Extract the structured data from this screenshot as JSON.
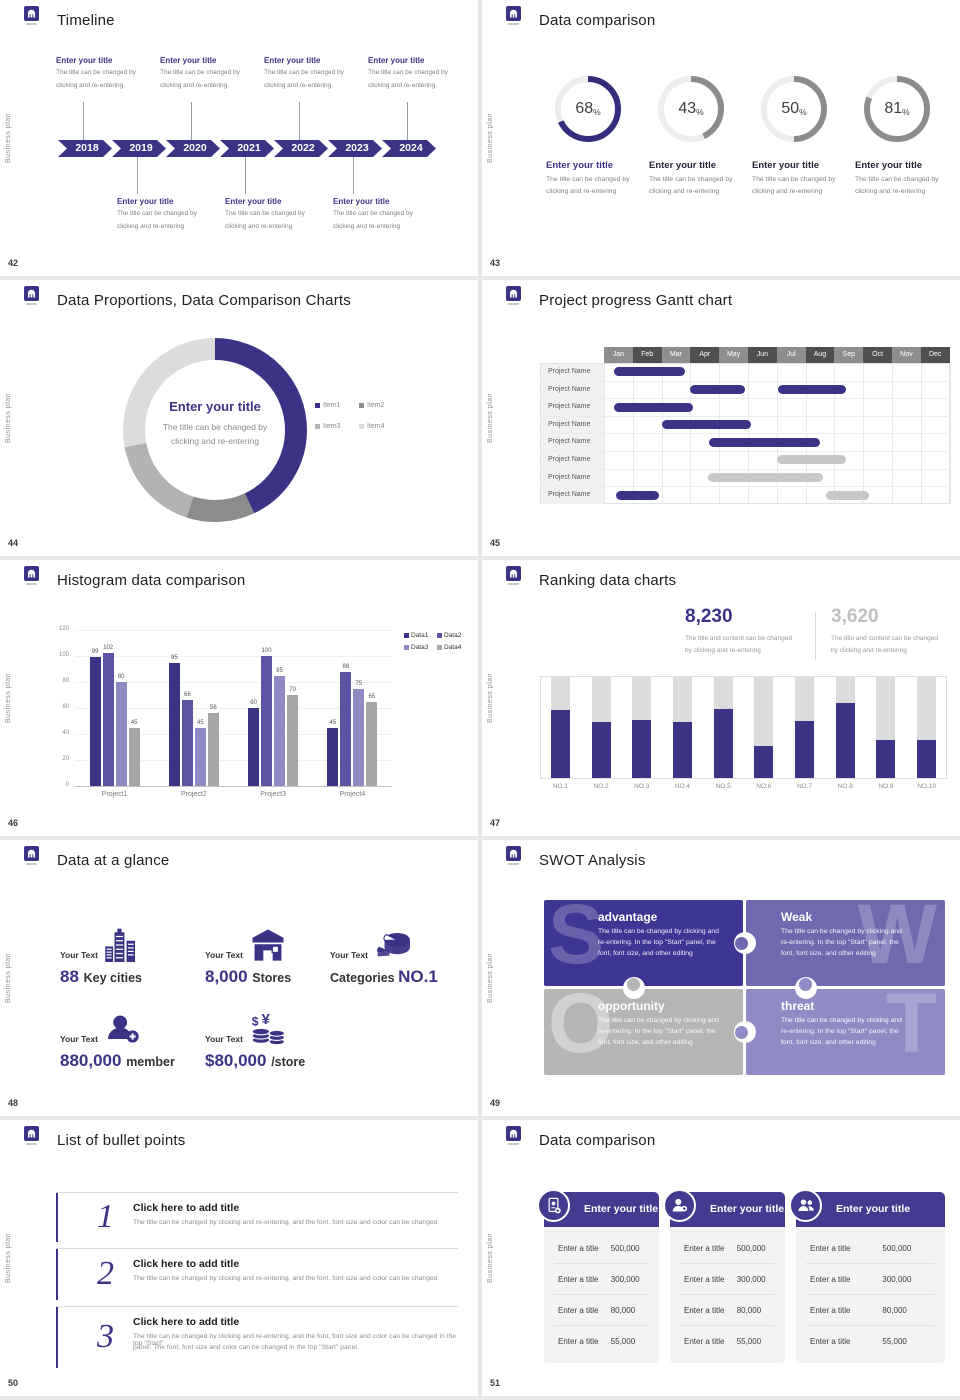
{
  "colors": {
    "accent": "#3b3486",
    "accent_deep": "#332d7b",
    "accent_mid": "#5b54a5",
    "accent_light": "#8f8ac4",
    "gray": "#8c8c8c",
    "gray_bar": "#c7c7c7",
    "track": "#dcdcdc",
    "card_header": "#423b8f"
  },
  "common": {
    "side_label": "Business plan"
  },
  "slides": [
    {
      "id": "timeline",
      "page_number": "42",
      "title": "Timeline",
      "years": [
        "2018",
        "2019",
        "2020",
        "2021",
        "2022",
        "2023",
        "2024"
      ],
      "item_title": "Enter your title",
      "item_body_lines": [
        "The title can be changed by",
        "clicking and re-entering"
      ],
      "top_year_indexes": [
        0,
        2,
        4,
        6
      ],
      "bottom_year_indexes": [
        1,
        3,
        5
      ]
    },
    {
      "id": "donut-progress",
      "page_number": "43",
      "title": "Data comparison",
      "item_title": "Enter your title",
      "item_body_lines": [
        "The title can be changed by",
        "clicking and re-entering"
      ]
    },
    {
      "id": "proportions",
      "page_number": "44",
      "title": "Data Proportions, Data Comparison Charts",
      "center_title": "Enter your title",
      "center_body_lines": [
        "The title can be changed by",
        "clicking and re-entering"
      ]
    },
    {
      "id": "gantt",
      "page_number": "45",
      "title": "Project progress Gantt chart",
      "row_label": "Project Name"
    },
    {
      "id": "histogram",
      "page_number": "46",
      "title": "Histogram data comparison"
    },
    {
      "id": "ranking",
      "page_number": "47",
      "title": "Ranking data charts",
      "stats": [
        {
          "value": "8,230",
          "accent": true,
          "body_lines": [
            "The title and content can be changed",
            "by clicking and re-entering"
          ]
        },
        {
          "value": "3,620",
          "accent": false,
          "body_lines": [
            "The title and content can be changed",
            "by clicking and re-entering"
          ]
        }
      ]
    },
    {
      "id": "glance",
      "page_number": "48",
      "title": "Data at a glance",
      "items": [
        {
          "label": "Your Text",
          "icon": "city-buildings-icon",
          "value": "88",
          "unit": "Key cities"
        },
        {
          "label": "Your Text",
          "icon": "store-icon",
          "value": "8,000",
          "unit": "Stores"
        },
        {
          "label": "Your Text",
          "icon": "pie-categories-icon",
          "prefix": "Categories",
          "value": "NO.1",
          "unit": ""
        },
        {
          "label": "Your Text",
          "icon": "member-add-icon",
          "value": "880,000",
          "unit": "member"
        },
        {
          "label": "Your Text",
          "icon": "coins-currency-icon",
          "value": "$80,000",
          "unit": "/store"
        }
      ]
    },
    {
      "id": "swot",
      "page_number": "49",
      "title": "SWOT Analysis",
      "pieces": [
        {
          "letter": "S",
          "title": "advantage",
          "color": "#3d3693",
          "body_lines": [
            "The title can be changed by clicking and",
            "re-entering. In the top \"Start\" panel, the",
            "font, font size, and other editing"
          ]
        },
        {
          "letter": "W",
          "title": "Weak",
          "color": "#6f69b0",
          "body_lines": [
            "The title can be changed by clicking and",
            "re-entering. In the top \"Start\" panel, the",
            "font, font size, and other editing"
          ]
        },
        {
          "letter": "O",
          "title": "opportunity",
          "color": "#b5b5b5",
          "body_lines": [
            "The title can be changed by clicking and",
            "re-entering. In the top \"Start\" panel, the",
            "font, font size, and other editing"
          ]
        },
        {
          "letter": "T",
          "title": "threat",
          "color": "#908bc5",
          "body_lines": [
            "The title can be changed by clicking and",
            "re-entering. In the top \"Start\" panel, the",
            "font, font size, and other editing"
          ]
        }
      ]
    },
    {
      "id": "bullets",
      "page_number": "50",
      "title": "List of bullet points",
      "items": [
        {
          "number": "1",
          "title": "Click here to add title",
          "body_lines": [
            "The title can be changed by clicking and re-entering, and the font, font size and color can be changed"
          ]
        },
        {
          "number": "2",
          "title": "Click here to add title",
          "body_lines": [
            "The title can be changed by clicking and re-entering, and the font, font size and color can be changed"
          ]
        },
        {
          "number": "3",
          "title": "Click here to add title",
          "body_lines": [
            "The title can be changed by clicking and re-entering, and the font, font size and color can be changed in the top \"Start\"",
            "panel. The font, font size and color can be changed in the top \"Start\" panel."
          ]
        }
      ]
    },
    {
      "id": "cards",
      "page_number": "51",
      "title": "Data comparison",
      "row_label": "Enter a title",
      "cards": [
        {
          "icon": "id-card-add-icon",
          "title": "Enter your title",
          "values": [
            "500,000",
            "300,000",
            "80,000",
            "55,000"
          ]
        },
        {
          "icon": "person-add-icon",
          "title": "Enter your title",
          "values": [
            "500,000",
            "300,000",
            "80,000",
            "55,000"
          ]
        },
        {
          "icon": "people-icon",
          "title": "Enter your title",
          "values": [
            "500,000",
            "300,000",
            "80,000",
            "55,000"
          ]
        }
      ]
    }
  ],
  "chart_data": [
    {
      "type": "pie",
      "variant": "progress-rings",
      "slide": "43",
      "values": [
        68,
        43,
        50,
        81
      ],
      "unit": "%",
      "ring_colors": [
        "#332d7b",
        "#8c8c8c",
        "#8c8c8c",
        "#8c8c8c"
      ],
      "track_color": "#ededed"
    },
    {
      "type": "pie",
      "variant": "donut",
      "slide": "44",
      "labels": [
        "Item1",
        "Item2",
        "Item3",
        "Item4"
      ],
      "values": [
        43,
        12,
        17,
        28
      ],
      "colors": [
        "#3b3486",
        "#8c8c8c",
        "#b3b3b3",
        "#dcdcdc"
      ],
      "legend_position": "right"
    },
    {
      "type": "gantt",
      "slide": "45",
      "months": [
        "Jan",
        "Feb",
        "Mar",
        "Apr",
        "May",
        "Jun",
        "Jul",
        "Aug",
        "Sep",
        "Oct",
        "Nov",
        "Dec"
      ],
      "rows": [
        {
          "label": "Project Name",
          "bars": [
            {
              "start": 0.35,
              "end": 2.8,
              "color": "accent"
            }
          ]
        },
        {
          "label": "Project Name",
          "bars": [
            {
              "start": 3.0,
              "end": 4.9,
              "color": "accent"
            },
            {
              "start": 6.05,
              "end": 8.4,
              "color": "accent"
            }
          ]
        },
        {
          "label": "Project Name",
          "bars": [
            {
              "start": 0.35,
              "end": 3.1,
              "color": "accent"
            }
          ]
        },
        {
          "label": "Project Name",
          "bars": [
            {
              "start": 2.0,
              "end": 5.1,
              "color": "accent"
            }
          ]
        },
        {
          "label": "Project Name",
          "bars": [
            {
              "start": 3.65,
              "end": 7.5,
              "color": "accent"
            }
          ]
        },
        {
          "label": "Project Name",
          "bars": [
            {
              "start": 6.0,
              "end": 8.4,
              "color": "gray"
            }
          ]
        },
        {
          "label": "Project Name",
          "bars": [
            {
              "start": 3.6,
              "end": 7.6,
              "color": "gray"
            }
          ]
        },
        {
          "label": "Project Name",
          "bars": [
            {
              "start": 0.4,
              "end": 1.9,
              "color": "accent"
            },
            {
              "start": 7.7,
              "end": 9.2,
              "color": "gray"
            }
          ]
        }
      ]
    },
    {
      "type": "bar",
      "slide": "46",
      "categories": [
        "Project1",
        "Project2",
        "Project3",
        "Project4"
      ],
      "series": [
        {
          "name": "Data1",
          "color": "#3b3486",
          "values": [
            99,
            95,
            60,
            45
          ]
        },
        {
          "name": "Data2",
          "color": "#5b54a5",
          "values": [
            102,
            66,
            100,
            88
          ]
        },
        {
          "name": "Data3",
          "color": "#8f8ac4",
          "values": [
            80,
            45,
            85,
            75
          ]
        },
        {
          "name": "Data4",
          "color": "#a6a6a6",
          "values": [
            45,
            56,
            70,
            65
          ]
        }
      ],
      "y_ticks": [
        0,
        20,
        40,
        60,
        80,
        100,
        120
      ],
      "ylim": [
        0,
        120
      ],
      "data_labels": true,
      "legend_position": "top-right"
    },
    {
      "type": "bar",
      "variant": "filled-columns",
      "slide": "47",
      "categories": [
        "NO.1",
        "NO.2",
        "NO.3",
        "NO.4",
        "NO.5",
        "NO.6",
        "NO.7",
        "NO.8",
        "NO.9",
        "NO.10"
      ],
      "values": [
        0.67,
        0.55,
        0.57,
        0.55,
        0.68,
        0.32,
        0.56,
        0.74,
        0.38,
        0.38
      ],
      "ylim": [
        0,
        1
      ],
      "highlight_values": [
        "8,230",
        "3,620"
      ]
    }
  ]
}
